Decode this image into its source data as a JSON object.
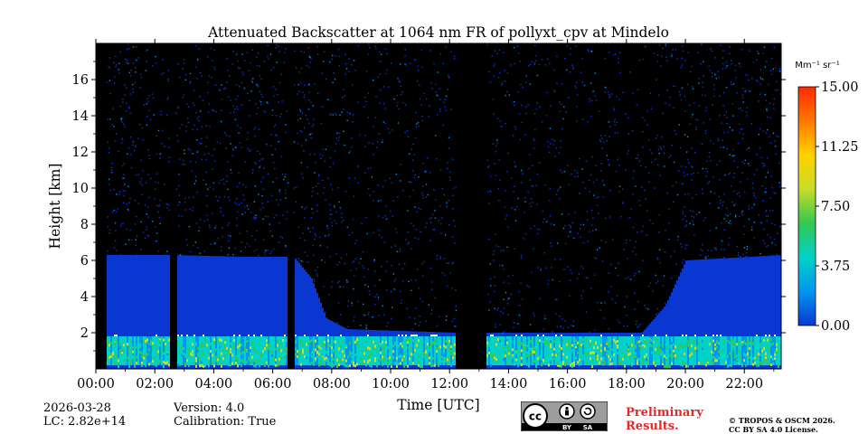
{
  "chart_data": {
    "type": "heatmap",
    "title": "Attenuated Backscatter at 1064 nm FR of pollyxt_cpv at Mindelo",
    "xlabel": "Time [UTC]",
    "ylabel": "Height [km]",
    "x_ticks": [
      "00:00",
      "02:00",
      "04:00",
      "06:00",
      "08:00",
      "10:00",
      "12:00",
      "14:00",
      "16:00",
      "18:00",
      "20:00",
      "22:00"
    ],
    "y_ticks": [
      2,
      4,
      6,
      8,
      10,
      12,
      14,
      16
    ],
    "xlim_hours": [
      0,
      23.25
    ],
    "ylim_km": [
      0,
      18
    ],
    "data_gaps_hours": [
      [
        0,
        0.35
      ],
      [
        2.5,
        2.7
      ],
      [
        6.5,
        6.7
      ],
      [
        12.2,
        13.25
      ]
    ],
    "colorbar": {
      "unit_label": "Mm⁻¹ sr⁻¹",
      "ticks": [
        "0.00",
        "3.75",
        "7.50",
        "11.25",
        "15.00"
      ],
      "range": [
        0,
        15
      ],
      "colors": [
        "#0a37d2",
        "#0096f0",
        "#00d2c8",
        "#32c850",
        "#c8dc28",
        "#ffd200",
        "#ff7800",
        "#ff2800"
      ]
    },
    "profile": {
      "aerosol_layer_top_km": [
        {
          "t": 0.35,
          "h": 6.3
        },
        {
          "t": 2.5,
          "h": 6.3
        },
        {
          "t": 5.0,
          "h": 6.2
        },
        {
          "t": 6.7,
          "h": 6.2
        },
        {
          "t": 7.3,
          "h": 5.0
        },
        {
          "t": 7.8,
          "h": 2.8
        },
        {
          "t": 8.5,
          "h": 2.2
        },
        {
          "t": 12.2,
          "h": 2.0
        },
        {
          "t": 13.25,
          "h": 2.0
        },
        {
          "t": 18.5,
          "h": 2.0
        },
        {
          "t": 19.3,
          "h": 3.5
        },
        {
          "t": 20.0,
          "h": 6.0
        },
        {
          "t": 23.25,
          "h": 6.3
        }
      ],
      "boundary_layer_top_km": 1.8
    }
  },
  "footer": {
    "date": "2026-03-28",
    "lc": "LC: 2.82e+14",
    "version": "Version: 4.0",
    "calibration": "Calibration: True",
    "preliminary_line1": "Preliminary",
    "preliminary_line2": "Results.",
    "copyright_line1": "© TROPOS & OSCM 2026.",
    "copyright_line2": "CC BY SA 4.0 License.",
    "license_badge": {
      "cc": "cc",
      "by": "BY",
      "sa": "SA"
    }
  }
}
